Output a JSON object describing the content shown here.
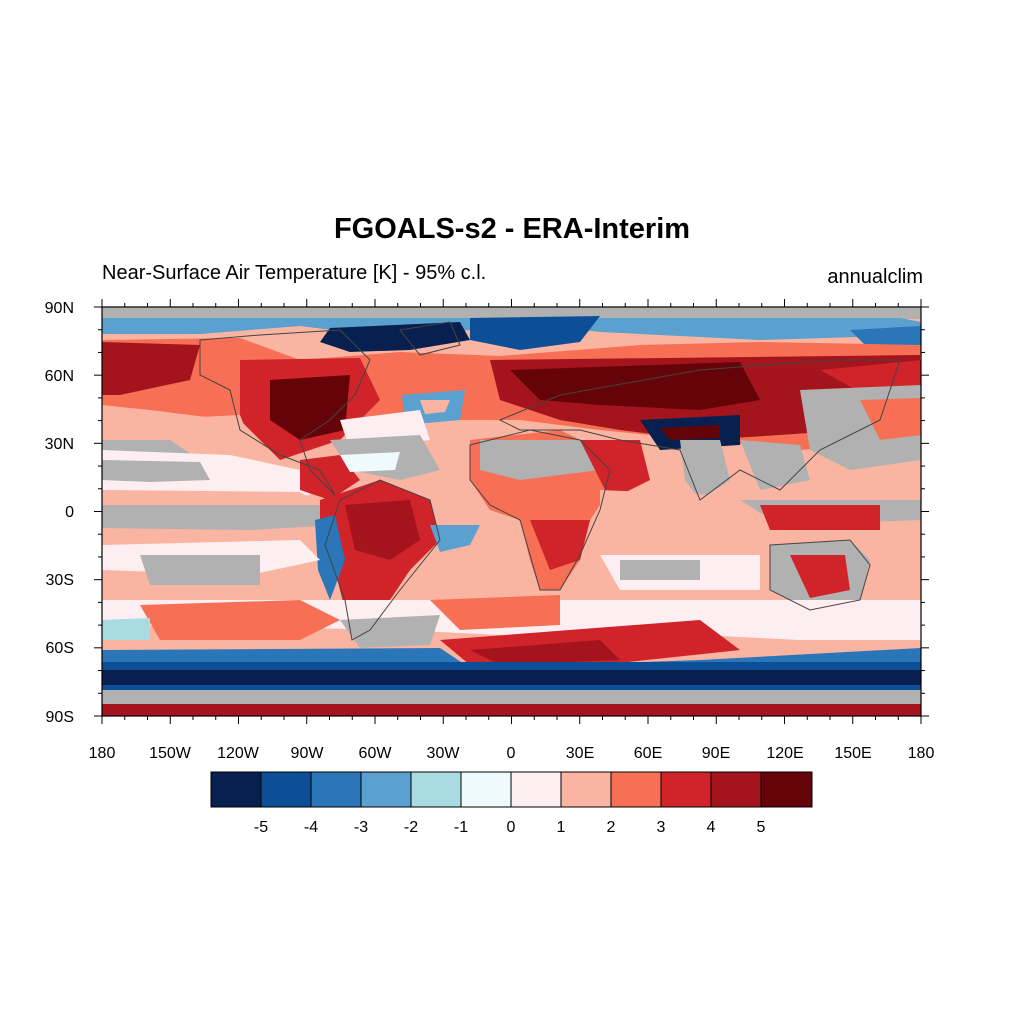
{
  "title": "FGOALS-s2 - ERA-Interim",
  "subtitle_left": "Near-Surface Air Temperature [K] - 95% c.l.",
  "subtitle_right": "annualclim",
  "axes": {
    "lon_labels": [
      "180",
      "150W",
      "120W",
      "90W",
      "60W",
      "30W",
      "0",
      "30E",
      "60E",
      "90E",
      "120E",
      "150E",
      "180"
    ],
    "lat_labels": [
      "90N",
      "60N",
      "30N",
      "0",
      "30S",
      "60S",
      "90S"
    ]
  },
  "colorbar": {
    "colors": [
      "#08204f",
      "#0d4f96",
      "#2a76b8",
      "#5aa1cf",
      "#a9dbe3",
      "#effafc",
      "#fdeef2",
      "#f9b4a2",
      "#f76f54",
      "#d0232a",
      "#a3141d",
      "#650408"
    ],
    "labels": [
      "-5",
      "-4",
      "-3",
      "-2",
      "-1",
      "0",
      "1",
      "2",
      "3",
      "4",
      "5"
    ]
  },
  "map_colors": {
    "insignificant": "#b1b1b1",
    "ocean_background": "#f9b4a2"
  }
}
